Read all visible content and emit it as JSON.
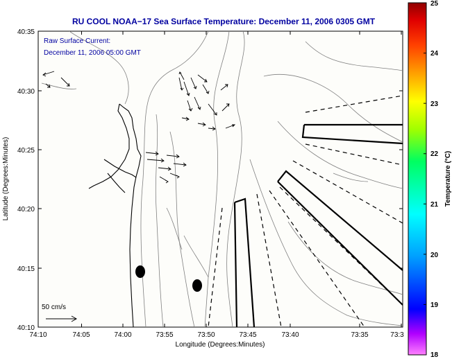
{
  "title": "RU COOL  NOAA−17  Sea Surface Temperature:  December 11, 2006 0305 GMT",
  "annotation": {
    "line1": "Raw Surface Current:",
    "line2": "December 11, 2006 05:00 GMT"
  },
  "scale_label": "50 cm/s",
  "xlabel": "Longitude (Degrees:Minutes)",
  "ylabel": "Latitude (Degrees:Minutes)",
  "x_ticks": [
    "74:10",
    "74:05",
    "74:00",
    "73:55",
    "73:50",
    "73:45",
    "73:40",
    "73:35",
    "73:3"
  ],
  "y_ticks": [
    "40:35",
    "40:30",
    "40:25",
    "40:20",
    "40:15",
    "40:10"
  ],
  "colorbar": {
    "label": "Temperature (°C)",
    "ticks": [
      "25",
      "24",
      "23",
      "22",
      "21",
      "20",
      "19",
      "18"
    ],
    "range": [
      18,
      25
    ]
  },
  "colors": {
    "title": "#0000a0",
    "annotation": "#0000a0",
    "land_background": "#fdfdfa",
    "contour": "#808080",
    "coast": "#000000"
  }
}
